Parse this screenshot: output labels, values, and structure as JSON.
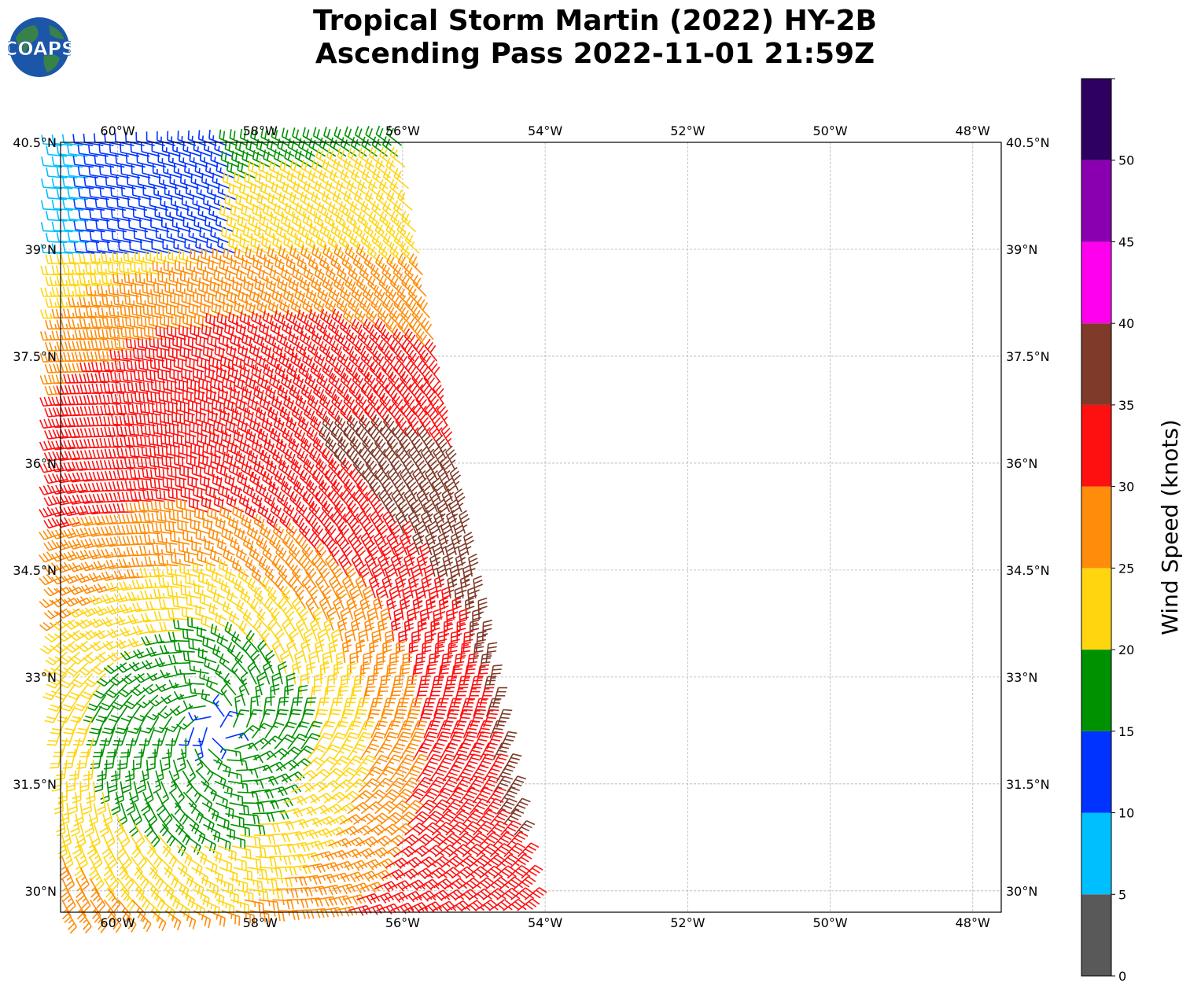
{
  "header": {
    "title_line1": "Tropical Storm Martin (2022) HY-2B",
    "title_line2": "Ascending Pass 2022-11-01 21:59Z"
  },
  "logo": {
    "text": "COAPS",
    "ocean_color": "#1b56a8",
    "land_color": "#3d8a3a"
  },
  "map": {
    "lon_range": [
      -60.8,
      -47.6
    ],
    "lat_range": [
      29.7,
      40.5
    ],
    "lon_ticks": [
      {
        "value": -60,
        "label": "60°W"
      },
      {
        "value": -58,
        "label": "58°W"
      },
      {
        "value": -56,
        "label": "56°W"
      },
      {
        "value": -54,
        "label": "54°W"
      },
      {
        "value": -52,
        "label": "52°W"
      },
      {
        "value": -50,
        "label": "50°W"
      },
      {
        "value": -48,
        "label": "48°W"
      }
    ],
    "lat_ticks": [
      {
        "value": 40.5,
        "label": "40.5°N"
      },
      {
        "value": 39,
        "label": "39°N"
      },
      {
        "value": 37.5,
        "label": "37.5°N"
      },
      {
        "value": 36,
        "label": "36°N"
      },
      {
        "value": 34.5,
        "label": "34.5°N"
      },
      {
        "value": 33,
        "label": "33°N"
      },
      {
        "value": 31.5,
        "label": "31.5°N"
      },
      {
        "value": 30,
        "label": "30°N"
      }
    ],
    "grid": true,
    "storm_center_approx": {
      "lon": -58.6,
      "lat": 32.3
    }
  },
  "colorbar": {
    "label": "Wind Speed (knots)",
    "bins": [
      {
        "min": 0,
        "max": 5,
        "color": "#595959"
      },
      {
        "min": 5,
        "max": 10,
        "color": "#00bfff"
      },
      {
        "min": 10,
        "max": 15,
        "color": "#0033ff"
      },
      {
        "min": 15,
        "max": 20,
        "color": "#009100"
      },
      {
        "min": 20,
        "max": 25,
        "color": "#ffd510"
      },
      {
        "min": 25,
        "max": 30,
        "color": "#ff8c0a"
      },
      {
        "min": 30,
        "max": 35,
        "color": "#ff1010"
      },
      {
        "min": 35,
        "max": 40,
        "color": "#7f3a2a"
      },
      {
        "min": 40,
        "max": 45,
        "color": "#ff00ee"
      },
      {
        "min": 45,
        "max": 50,
        "color": "#8a00b0"
      },
      {
        "min": 50,
        "max": 55,
        "color": "#2e0060"
      }
    ],
    "tick_values": [
      0,
      5,
      10,
      15,
      20,
      25,
      30,
      35,
      40,
      45,
      50
    ],
    "tick_labels": [
      "0",
      "5",
      "10",
      "15",
      "20",
      "25",
      "30",
      "35",
      "40",
      "45",
      "50"
    ]
  }
}
